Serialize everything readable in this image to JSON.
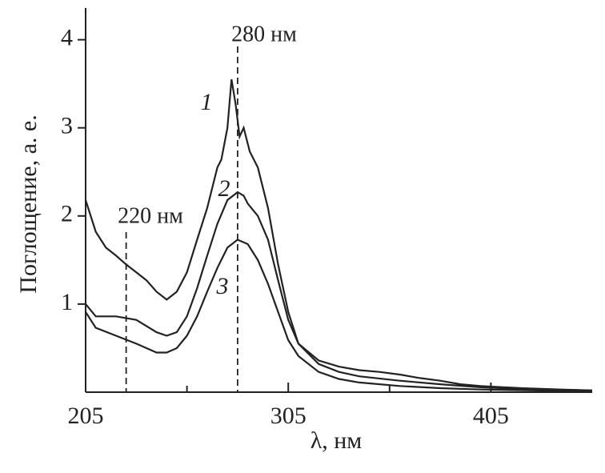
{
  "chart_data": {
    "type": "line",
    "xlabel": "λ, нм",
    "ylabel": "Поглощение, а. е.",
    "xlim": [
      205,
      455
    ],
    "ylim": [
      0,
      4.36
    ],
    "xticks": [
      205,
      305,
      405
    ],
    "xminor_ticks": [
      255,
      355
    ],
    "yticks": [
      1,
      2,
      3,
      4
    ],
    "annotations": [
      {
        "x": 225,
        "label": "220 нм"
      },
      {
        "x": 280,
        "label": "280 нм"
      }
    ],
    "series": [
      {
        "name": "1",
        "color": "#222",
        "x": [
          205,
          210,
          215,
          220,
          225,
          230,
          235,
          240,
          245,
          250,
          255,
          260,
          265,
          270,
          272,
          275,
          277,
          279,
          281,
          283,
          286,
          290,
          295,
          300,
          305,
          310,
          320,
          330,
          340,
          350,
          360,
          370,
          380,
          390,
          400,
          420,
          440,
          455
        ],
        "values": [
          2.18,
          1.82,
          1.64,
          1.55,
          1.45,
          1.36,
          1.27,
          1.14,
          1.05,
          1.14,
          1.36,
          1.73,
          2.09,
          2.55,
          2.64,
          3.0,
          3.55,
          3.27,
          2.9,
          3.0,
          2.73,
          2.55,
          2.09,
          1.45,
          0.91,
          0.55,
          0.36,
          0.29,
          0.25,
          0.23,
          0.2,
          0.16,
          0.13,
          0.09,
          0.07,
          0.045,
          0.03,
          0.02
        ]
      },
      {
        "name": "2",
        "color": "#222",
        "x": [
          205,
          210,
          220,
          230,
          240,
          245,
          250,
          255,
          260,
          265,
          270,
          275,
          280,
          283,
          285,
          290,
          295,
          300,
          305,
          310,
          320,
          330,
          340,
          360,
          380,
          400,
          420,
          455
        ],
        "values": [
          1.0,
          0.86,
          0.86,
          0.82,
          0.68,
          0.64,
          0.68,
          0.86,
          1.18,
          1.55,
          1.91,
          2.18,
          2.27,
          2.23,
          2.14,
          2.0,
          1.73,
          1.27,
          0.82,
          0.55,
          0.32,
          0.23,
          0.18,
          0.13,
          0.09,
          0.055,
          0.035,
          0.02
        ]
      },
      {
        "name": "3",
        "color": "#222",
        "x": [
          205,
          210,
          220,
          230,
          240,
          245,
          250,
          255,
          260,
          265,
          270,
          275,
          280,
          285,
          290,
          295,
          300,
          305,
          310,
          320,
          330,
          340,
          360,
          380,
          400,
          455
        ],
        "values": [
          0.91,
          0.73,
          0.64,
          0.55,
          0.45,
          0.45,
          0.5,
          0.64,
          0.86,
          1.14,
          1.41,
          1.64,
          1.73,
          1.68,
          1.5,
          1.23,
          0.91,
          0.59,
          0.41,
          0.23,
          0.15,
          0.11,
          0.07,
          0.045,
          0.03,
          0.01
        ]
      }
    ]
  }
}
